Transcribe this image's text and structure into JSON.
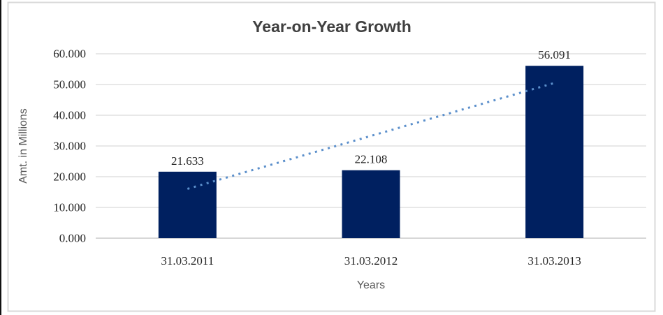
{
  "chart_data": {
    "type": "bar",
    "title": "Year-on-Year Growth",
    "xlabel": "Years",
    "ylabel": "Amt. in Millions",
    "categories": [
      "31.03.2011",
      "31.03.2012",
      "31.03.2013"
    ],
    "values": [
      21.633,
      22.108,
      56.091
    ],
    "data_labels": [
      "21.633",
      "22.108",
      "56.091"
    ],
    "ylim": [
      0,
      60
    ],
    "ytick_values": [
      0,
      10,
      20,
      30,
      40,
      50,
      60
    ],
    "ytick_labels": [
      "0.000",
      "10.000",
      "20.000",
      "30.000",
      "40.000",
      "50.000",
      "60.000"
    ],
    "grid": true,
    "legend": false,
    "trendline": {
      "type": "linear",
      "style": "dotted"
    },
    "colors": {
      "bar": "#002060",
      "trendline": "#5B8FCB",
      "gridline": "#D9D9D9",
      "axis_line": "#BFBFBF",
      "frame_border": "#D9D9D9",
      "page_edge": "#111111",
      "title_text": "#404040",
      "tick_text": "#262626",
      "axis_title_text": "#595959"
    }
  }
}
